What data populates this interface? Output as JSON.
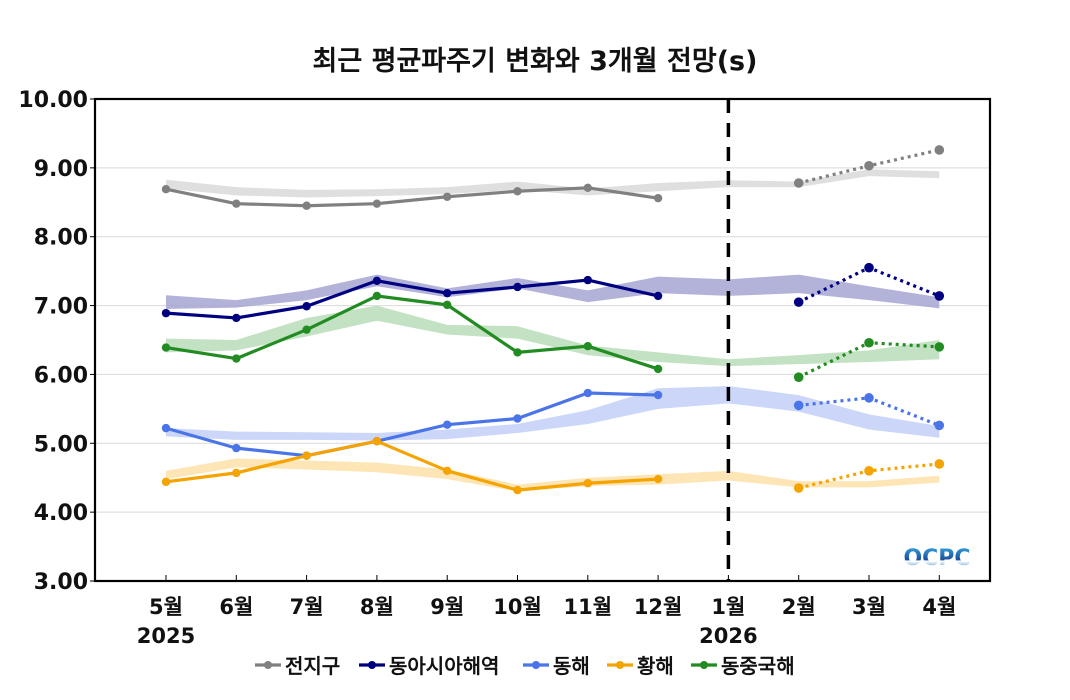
{
  "chart_data": {
    "type": "line",
    "title": "최근 평균파주기 변화와 3개월 전망(s)",
    "xlabel": "",
    "ylabel": "",
    "ylim": [
      3.0,
      10.0
    ],
    "yticks": [
      "3.00",
      "4.00",
      "5.00",
      "6.00",
      "7.00",
      "8.00",
      "9.00",
      "10.00"
    ],
    "grid": "horizontal",
    "categories": [
      "5월",
      "6월",
      "7월",
      "8월",
      "9월",
      "10월",
      "11월",
      "12월",
      "1월",
      "2월",
      "3월",
      "4월"
    ],
    "year_labels": [
      {
        "category": "5월",
        "text": "2025"
      },
      {
        "category": "1월",
        "text": "2026"
      }
    ],
    "divider_category": "1월",
    "legend_position": "bottom",
    "watermark": "OCPC",
    "series": [
      {
        "name": "전지구",
        "color": "#808080",
        "band_color": "#d9d9d9",
        "observed": [
          8.69,
          8.48,
          8.45,
          8.48,
          8.58,
          8.66,
          8.71,
          8.56,
          null,
          null,
          null,
          null
        ],
        "forecast": [
          null,
          null,
          null,
          null,
          null,
          null,
          null,
          null,
          null,
          8.78,
          9.03,
          9.26
        ],
        "band_upper": [
          8.83,
          8.72,
          8.68,
          8.69,
          8.72,
          8.8,
          8.7,
          8.78,
          8.82,
          8.8,
          8.98,
          8.95
        ],
        "band_lower": [
          8.7,
          8.6,
          8.57,
          8.59,
          8.62,
          8.68,
          8.6,
          8.66,
          8.72,
          8.72,
          8.88,
          8.85
        ]
      },
      {
        "name": "동아시아해역",
        "color": "#000080",
        "band_color": "#a6a6d2",
        "observed": [
          6.89,
          6.82,
          6.99,
          7.36,
          7.18,
          7.27,
          7.37,
          7.14,
          null,
          null,
          null,
          null
        ],
        "forecast": [
          null,
          null,
          null,
          null,
          null,
          null,
          null,
          null,
          null,
          7.05,
          7.55,
          7.14
        ],
        "band_upper": [
          7.15,
          7.08,
          7.22,
          7.45,
          7.25,
          7.4,
          7.22,
          7.42,
          7.38,
          7.45,
          7.28,
          7.12
        ],
        "band_lower": [
          6.95,
          6.97,
          7.08,
          7.28,
          7.12,
          7.25,
          7.05,
          7.18,
          7.14,
          7.18,
          7.08,
          6.96
        ]
      },
      {
        "name": "동해",
        "color": "#4a74e8",
        "band_color": "#c2cff8",
        "observed": [
          5.22,
          4.93,
          4.82,
          5.03,
          5.27,
          5.36,
          5.73,
          5.7,
          null,
          null,
          null,
          null
        ],
        "forecast": [
          null,
          null,
          null,
          null,
          null,
          null,
          null,
          null,
          null,
          5.55,
          5.66,
          5.26
        ],
        "band_upper": [
          5.22,
          5.17,
          5.16,
          5.15,
          5.2,
          5.28,
          5.48,
          5.8,
          5.83,
          5.7,
          5.42,
          5.25
        ],
        "band_lower": [
          5.1,
          5.05,
          5.05,
          5.04,
          5.06,
          5.15,
          5.28,
          5.5,
          5.58,
          5.46,
          5.2,
          5.08
        ]
      },
      {
        "name": "황해",
        "color": "#f5a300",
        "band_color": "#fde0a8",
        "observed": [
          4.44,
          4.57,
          4.82,
          5.03,
          4.6,
          4.32,
          4.42,
          4.48,
          null,
          null,
          null,
          null
        ],
        "forecast": [
          null,
          null,
          null,
          null,
          null,
          null,
          null,
          null,
          null,
          4.35,
          4.6,
          4.7
        ],
        "band_upper": [
          4.6,
          4.78,
          4.75,
          4.72,
          4.62,
          4.4,
          4.5,
          4.55,
          4.6,
          4.45,
          4.45,
          4.53
        ],
        "band_lower": [
          4.48,
          4.65,
          4.62,
          4.58,
          4.48,
          4.3,
          4.38,
          4.4,
          4.46,
          4.36,
          4.36,
          4.43
        ]
      },
      {
        "name": "동중국해",
        "color": "#228b22",
        "band_color": "#b8dcb8",
        "observed": [
          6.39,
          6.23,
          6.65,
          7.14,
          7.01,
          6.32,
          6.41,
          6.08,
          null,
          null,
          null,
          null
        ],
        "forecast": [
          null,
          null,
          null,
          null,
          null,
          null,
          null,
          null,
          null,
          5.96,
          6.46,
          6.4
        ],
        "band_upper": [
          6.52,
          6.5,
          6.82,
          7.0,
          6.72,
          6.7,
          6.42,
          6.32,
          6.22,
          6.28,
          6.35,
          6.5
        ],
        "band_lower": [
          6.32,
          6.35,
          6.55,
          6.78,
          6.58,
          6.52,
          6.28,
          6.18,
          6.12,
          6.15,
          6.18,
          6.22
        ]
      }
    ]
  }
}
